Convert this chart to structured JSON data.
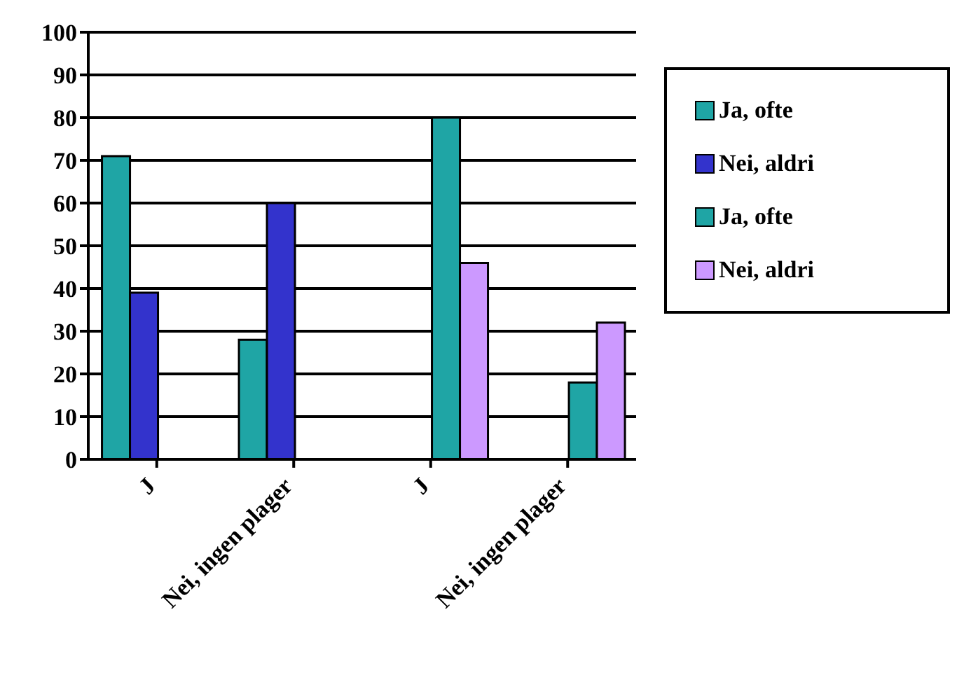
{
  "chart_data": {
    "type": "bar",
    "categories": [
      "J",
      "Nei, ingen plager",
      "J",
      "Nei, ingen plager"
    ],
    "series": [
      {
        "name": "Ja, ofte",
        "color": "#1fa5a5",
        "values": [
          71,
          28,
          null,
          null
        ]
      },
      {
        "name": "Nei, aldri",
        "color": "#3333cc",
        "values": [
          39,
          60,
          null,
          null
        ]
      },
      {
        "name": "Ja, ofte",
        "color": "#1fa5a5",
        "values": [
          null,
          null,
          80,
          18
        ]
      },
      {
        "name": "Nei, aldri",
        "color": "#cc99ff",
        "values": [
          null,
          null,
          46,
          32
        ]
      }
    ],
    "ylim": [
      0,
      100
    ],
    "yticks": [
      0,
      10,
      20,
      30,
      40,
      50,
      60,
      70,
      80,
      90,
      100
    ],
    "grid": "y",
    "legend": "right"
  }
}
